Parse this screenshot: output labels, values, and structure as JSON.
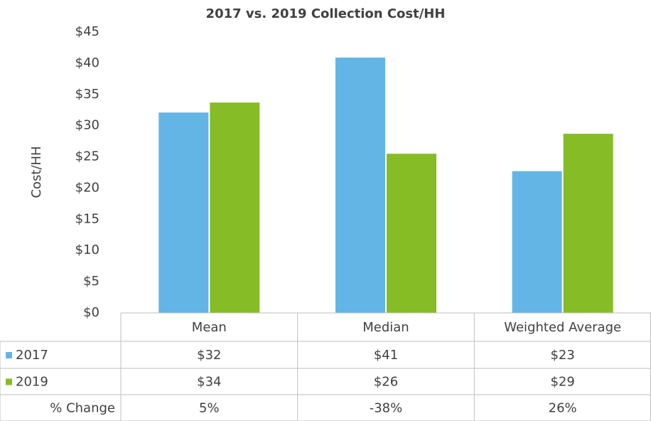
{
  "chart_data": {
    "type": "bar",
    "title": "2017 vs. 2019 Collection Cost/HH",
    "ylabel": "Cost/HH",
    "categories": [
      "Mean",
      "Median",
      "Weighted Average"
    ],
    "series": [
      {
        "name": "2017",
        "color": "#62b5e5",
        "values": [
          32.1,
          40.9,
          22.7
        ],
        "value_labels": [
          "$32",
          "$41",
          "$23"
        ]
      },
      {
        "name": "2019",
        "color": "#86bc25",
        "values": [
          33.7,
          25.5,
          28.7
        ],
        "value_labels": [
          "$34",
          "$26",
          "$29"
        ]
      }
    ],
    "change": {
      "name": "% Change",
      "values": [
        5,
        -38,
        26
      ],
      "value_labels": [
        "5%",
        "-38%",
        "26%"
      ]
    },
    "ylim": [
      0,
      45
    ],
    "yticks": [
      {
        "value": 0,
        "label": "$0"
      },
      {
        "value": 5,
        "label": "$5"
      },
      {
        "value": 10,
        "label": "$10"
      },
      {
        "value": 15,
        "label": "$15"
      },
      {
        "value": 20,
        "label": "$20"
      },
      {
        "value": 25,
        "label": "$25"
      },
      {
        "value": 30,
        "label": "$30"
      },
      {
        "value": 35,
        "label": "$35"
      },
      {
        "value": 40,
        "label": "$40"
      },
      {
        "value": 45,
        "label": "$45"
      }
    ],
    "grid": false
  }
}
